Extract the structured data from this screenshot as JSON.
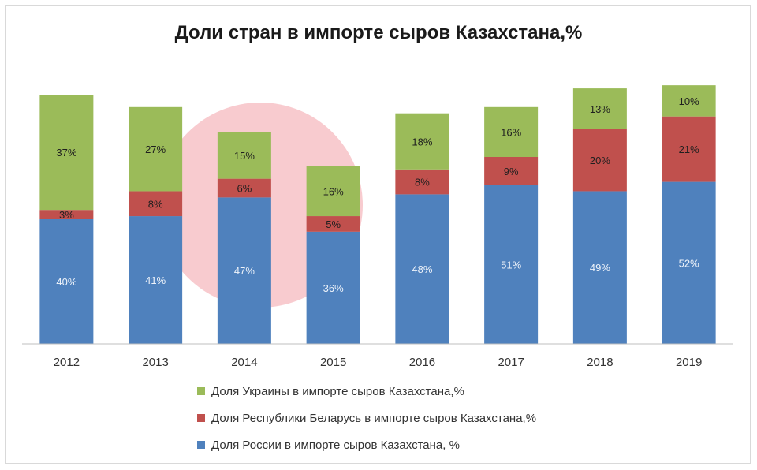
{
  "chart_data": {
    "type": "bar",
    "stacked": true,
    "title": "Доли стран в импорте сыров Казахстана,%",
    "categories": [
      "2012",
      "2013",
      "2014",
      "2015",
      "2016",
      "2017",
      "2018",
      "2019"
    ],
    "series": [
      {
        "name": "Доля России в импорте сыров Казахстана, %",
        "color": "#4f81bd",
        "values": [
          40,
          41,
          47,
          36,
          48,
          51,
          49,
          52
        ],
        "labels": [
          "40%",
          "41%",
          "47%",
          "36%",
          "48%",
          "51%",
          "49%",
          "52%"
        ]
      },
      {
        "name": "Доля Республики Беларусь в импорте сыров Казахстана,%",
        "color": "#c0504d",
        "values": [
          3,
          8,
          6,
          5,
          8,
          9,
          20,
          21
        ],
        "labels": [
          "3%",
          "8%",
          "6%",
          "5%",
          "8%",
          "9%",
          "20%",
          "21%"
        ]
      },
      {
        "name": "Доля Украины в импорте сыров Казахстана,%",
        "color": "#9bbb59",
        "values": [
          37,
          27,
          15,
          16,
          18,
          16,
          13,
          10
        ],
        "labels": [
          "37%",
          "27%",
          "15%",
          "16%",
          "18%",
          "16%",
          "13%",
          "10%"
        ]
      }
    ],
    "legend_order": [
      2,
      1,
      0
    ],
    "legend_position": "bottom",
    "grid": false
  }
}
